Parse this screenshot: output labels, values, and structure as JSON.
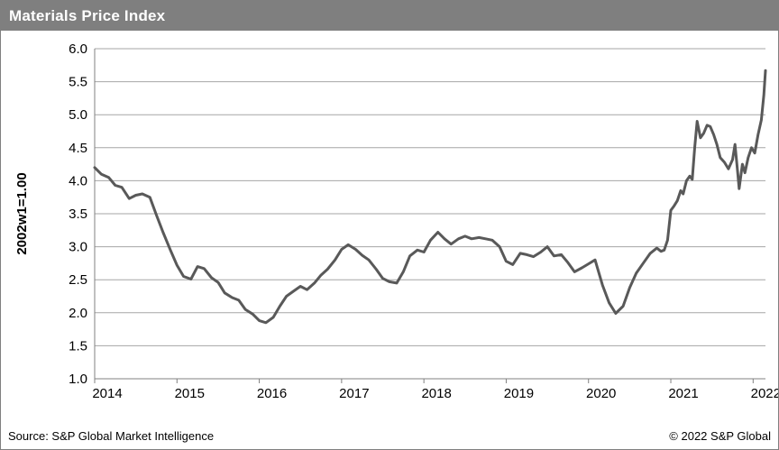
{
  "window": {
    "title": "Materials Price Index"
  },
  "footer": {
    "source": "Source: S&P Global Market Intelligence",
    "copyright": "© 2022 S&P Global"
  },
  "colors": {
    "title_bar": "#7f7f7f",
    "title_text": "#ffffff",
    "line": "#595959",
    "gridline": "#a6a6a6",
    "axis": "#808080",
    "background": "#ffffff"
  },
  "chart_data": {
    "type": "line",
    "title": "Materials Price Index",
    "xlabel": "",
    "ylabel": "2002w1=1.00",
    "ylim": [
      1.0,
      6.0
    ],
    "xlim": [
      2014.0,
      2022.15
    ],
    "y_ticks": [
      1.0,
      1.5,
      2.0,
      2.5,
      3.0,
      3.5,
      4.0,
      4.5,
      5.0,
      5.5,
      6.0
    ],
    "x_ticks": [
      2014,
      2015,
      2016,
      2017,
      2018,
      2019,
      2020,
      2021,
      2022
    ],
    "x_tick_labels": [
      "2014",
      "2015",
      "2016",
      "2017",
      "2018",
      "2019",
      "2020",
      "2021",
      "2022"
    ],
    "grid": "horizontal",
    "legend_position": "none",
    "series": [
      {
        "name": "Materials Price Index (2002w1=1.00)",
        "x": [
          2014.0,
          2014.08,
          2014.17,
          2014.25,
          2014.33,
          2014.42,
          2014.5,
          2014.58,
          2014.67,
          2014.75,
          2014.83,
          2014.92,
          2015.0,
          2015.08,
          2015.17,
          2015.25,
          2015.33,
          2015.42,
          2015.5,
          2015.58,
          2015.67,
          2015.75,
          2015.83,
          2015.92,
          2016.0,
          2016.08,
          2016.17,
          2016.25,
          2016.33,
          2016.42,
          2016.5,
          2016.58,
          2016.67,
          2016.75,
          2016.83,
          2016.92,
          2017.0,
          2017.08,
          2017.17,
          2017.25,
          2017.33,
          2017.42,
          2017.5,
          2017.58,
          2017.67,
          2017.75,
          2017.83,
          2017.92,
          2018.0,
          2018.08,
          2018.17,
          2018.25,
          2018.33,
          2018.42,
          2018.5,
          2018.58,
          2018.67,
          2018.75,
          2018.83,
          2018.92,
          2019.0,
          2019.08,
          2019.17,
          2019.25,
          2019.33,
          2019.42,
          2019.5,
          2019.58,
          2019.67,
          2019.75,
          2019.83,
          2019.92,
          2020.0,
          2020.08,
          2020.17,
          2020.25,
          2020.33,
          2020.42,
          2020.5,
          2020.58,
          2020.67,
          2020.75,
          2020.83,
          2020.88,
          2020.92,
          2020.96,
          2021.0,
          2021.04,
          2021.08,
          2021.12,
          2021.15,
          2021.19,
          2021.23,
          2021.26,
          2021.29,
          2021.32,
          2021.36,
          2021.4,
          2021.44,
          2021.48,
          2021.52,
          2021.56,
          2021.6,
          2021.65,
          2021.7,
          2021.75,
          2021.78,
          2021.81,
          2021.83,
          2021.87,
          2021.9,
          2021.94,
          2021.98,
          2022.02,
          2022.06,
          2022.1,
          2022.13,
          2022.15
        ],
        "y": [
          4.2,
          4.1,
          4.05,
          3.93,
          3.9,
          3.73,
          3.78,
          3.8,
          3.75,
          3.48,
          3.22,
          2.95,
          2.72,
          2.55,
          2.51,
          2.7,
          2.67,
          2.53,
          2.46,
          2.3,
          2.23,
          2.19,
          2.05,
          1.98,
          1.88,
          1.85,
          1.93,
          2.1,
          2.25,
          2.33,
          2.4,
          2.35,
          2.45,
          2.57,
          2.66,
          2.8,
          2.96,
          3.03,
          2.96,
          2.87,
          2.8,
          2.66,
          2.52,
          2.47,
          2.45,
          2.62,
          2.86,
          2.95,
          2.92,
          3.1,
          3.22,
          3.12,
          3.04,
          3.12,
          3.16,
          3.12,
          3.14,
          3.12,
          3.1,
          3.0,
          2.78,
          2.73,
          2.9,
          2.88,
          2.85,
          2.92,
          3.0,
          2.86,
          2.88,
          2.76,
          2.62,
          2.68,
          2.74,
          2.8,
          2.42,
          2.15,
          1.99,
          2.1,
          2.38,
          2.6,
          2.76,
          2.9,
          2.98,
          2.93,
          2.95,
          3.1,
          3.55,
          3.62,
          3.7,
          3.85,
          3.8,
          4.0,
          4.07,
          4.02,
          4.5,
          4.9,
          4.65,
          4.72,
          4.84,
          4.82,
          4.7,
          4.55,
          4.35,
          4.28,
          4.18,
          4.32,
          4.55,
          4.15,
          3.88,
          4.25,
          4.12,
          4.35,
          4.5,
          4.42,
          4.7,
          4.92,
          5.3,
          5.67
        ]
      }
    ]
  }
}
